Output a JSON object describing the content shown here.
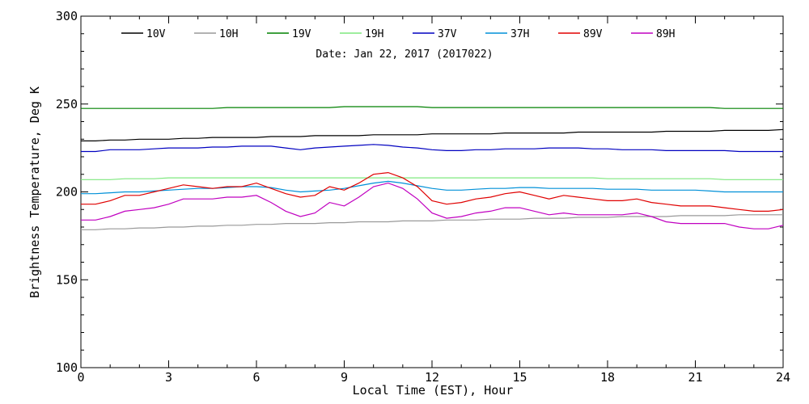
{
  "chart_data": {
    "type": "line",
    "xlabel": "Local Time (EST), Hour",
    "ylabel": "Brightness Temperature, Deg K",
    "annotation": "Date: Jan 22, 2017 (2017022)",
    "xlim": [
      0,
      24
    ],
    "ylim": [
      100,
      300
    ],
    "xticks": [
      0,
      3,
      6,
      9,
      12,
      15,
      18,
      21,
      24
    ],
    "yticks": [
      100,
      150,
      200,
      250,
      300
    ],
    "grid": false,
    "legend_position": "top",
    "x": [
      0,
      0.5,
      1,
      1.5,
      2,
      2.5,
      3,
      3.5,
      4,
      4.5,
      5,
      5.5,
      6,
      6.5,
      7,
      7.5,
      8,
      8.5,
      9,
      9.5,
      10,
      10.5,
      11,
      11.5,
      12,
      12.5,
      13,
      13.5,
      14,
      14.5,
      15,
      15.5,
      16,
      16.5,
      17,
      17.5,
      18,
      18.5,
      19,
      19.5,
      20,
      20.5,
      21,
      21.5,
      22,
      22.5,
      23,
      23.5,
      24
    ],
    "series": [
      {
        "name": "10V",
        "color": "#000000",
        "values": [
          229,
          229,
          229.5,
          229.5,
          230,
          230,
          230,
          230.5,
          230.5,
          231,
          231,
          231,
          231,
          231.5,
          231.5,
          231.5,
          232,
          232,
          232,
          232,
          232.5,
          232.5,
          232.5,
          232.5,
          233,
          233,
          233,
          233,
          233,
          233.5,
          233.5,
          233.5,
          233.5,
          233.5,
          234,
          234,
          234,
          234,
          234,
          234,
          234.5,
          234.5,
          234.5,
          234.5,
          235,
          235,
          235,
          235,
          235.5
        ]
      },
      {
        "name": "10H",
        "color": "#999999",
        "values": [
          178.5,
          178.5,
          179,
          179,
          179.5,
          179.5,
          180,
          180,
          180.5,
          180.5,
          181,
          181,
          181.5,
          181.5,
          182,
          182,
          182,
          182.5,
          182.5,
          183,
          183,
          183,
          183.5,
          183.5,
          183.5,
          184,
          184,
          184,
          184.5,
          184.5,
          184.5,
          185,
          185,
          185,
          185.5,
          185.5,
          185.5,
          186,
          186,
          186,
          186,
          186.5,
          186.5,
          186.5,
          186.5,
          187,
          187,
          187,
          187
        ]
      },
      {
        "name": "19V",
        "color": "#008000",
        "values": [
          247.5,
          247.5,
          247.5,
          247.5,
          247.5,
          247.5,
          247.5,
          247.5,
          247.5,
          247.5,
          248,
          248,
          248,
          248,
          248,
          248,
          248,
          248,
          248.5,
          248.5,
          248.5,
          248.5,
          248.5,
          248.5,
          248,
          248,
          248,
          248,
          248,
          248,
          248,
          248,
          248,
          248,
          248,
          248,
          248,
          248,
          248,
          248,
          248,
          248,
          248,
          248,
          247.5,
          247.5,
          247.5,
          247.5,
          247.5
        ]
      },
      {
        "name": "19H",
        "color": "#7fe87f",
        "values": [
          207,
          207,
          207,
          207.5,
          207.5,
          207.5,
          208,
          208,
          208,
          208,
          208,
          208,
          208,
          208,
          208,
          208,
          208,
          208,
          208,
          208,
          208,
          208,
          208,
          208,
          208,
          208,
          208,
          208,
          208,
          208,
          208,
          208,
          208,
          208,
          208,
          208,
          207.5,
          207.5,
          207.5,
          207.5,
          207.5,
          207.5,
          207.5,
          207.5,
          207,
          207,
          207,
          207,
          207
        ]
      },
      {
        "name": "37V",
        "color": "#0000c0",
        "values": [
          223,
          223,
          224,
          224,
          224,
          224.5,
          225,
          225,
          225,
          225.5,
          225.5,
          226,
          226,
          226,
          225,
          224,
          225,
          225.5,
          226,
          226.5,
          227,
          226.5,
          225.5,
          225,
          224,
          223.5,
          223.5,
          224,
          224,
          224.5,
          224.5,
          224.5,
          225,
          225,
          225,
          224.5,
          224.5,
          224,
          224,
          224,
          223.5,
          223.5,
          223.5,
          223.5,
          223.5,
          223,
          223,
          223,
          223
        ]
      },
      {
        "name": "37H",
        "color": "#0090d8",
        "values": [
          199,
          199,
          199.5,
          200,
          200,
          200.5,
          201,
          201.5,
          202,
          202,
          202.5,
          203,
          203,
          202.5,
          201,
          200,
          200.5,
          201,
          202,
          203.5,
          205,
          206,
          205,
          203.5,
          202,
          201,
          201,
          201.5,
          202,
          202,
          202.5,
          202.5,
          202,
          202,
          202,
          202,
          201.5,
          201.5,
          201.5,
          201,
          201,
          201,
          201,
          200.5,
          200,
          200,
          200,
          200,
          200
        ]
      },
      {
        "name": "89V",
        "color": "#e00000",
        "values": [
          193,
          193,
          195,
          198,
          198,
          200,
          202,
          204,
          203,
          202,
          203,
          203,
          205,
          202,
          199,
          197,
          198,
          203,
          201,
          205,
          210,
          211,
          208,
          203,
          195,
          193,
          194,
          196,
          197,
          199,
          200,
          198,
          196,
          198,
          197,
          196,
          195,
          195,
          196,
          194,
          193,
          192,
          192,
          192,
          191,
          190,
          189,
          189,
          190
        ]
      },
      {
        "name": "89H",
        "color": "#c000c0",
        "values": [
          184,
          184,
          186,
          189,
          190,
          191,
          193,
          196,
          196,
          196,
          197,
          197,
          198,
          194,
          189,
          186,
          188,
          194,
          192,
          197,
          203,
          205,
          202,
          196,
          188,
          185,
          186,
          188,
          189,
          191,
          191,
          189,
          187,
          188,
          187,
          187,
          187,
          187,
          188,
          186,
          183,
          182,
          182,
          182,
          182,
          180,
          179,
          179,
          181
        ]
      }
    ]
  }
}
